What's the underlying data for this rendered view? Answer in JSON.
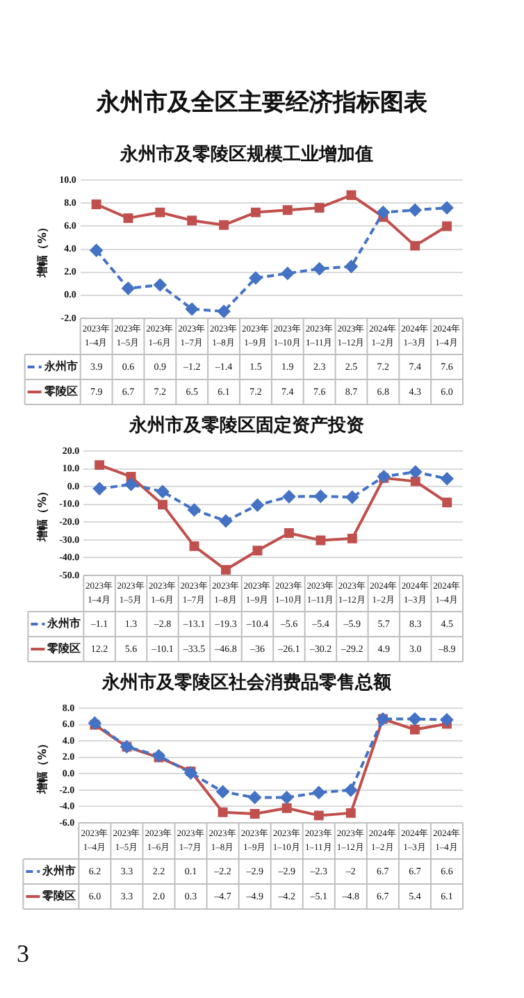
{
  "chart_data": [
    {
      "type": "other",
      "title": "永州市及全区主要经济指标图表",
      "annotations": [
        "3"
      ]
    },
    {
      "type": "line",
      "title": "永州市及零陵区规模工业增加值",
      "ylabel": "增幅（%）",
      "categories": [
        "2023年\n1–4月",
        "2023年\n1–5月",
        "2023年\n1–6月",
        "2023年\n1–7月",
        "2023年\n1–8月",
        "2023年\n1–9月",
        "2023年\n1–10月",
        "2023年\n1–11月",
        "2023年\n1–12月",
        "2024年\n1–2月",
        "2024年\n1–3月",
        "2024年\n1–4月"
      ],
      "series": [
        {
          "name": "永州市",
          "color": "#4472c4",
          "marker": "diamond",
          "line_style": "dashed",
          "values": [
            3.9,
            0.6,
            0.9,
            -1.2,
            -1.4,
            1.5,
            1.9,
            2.3,
            2.5,
            7.2,
            7.4,
            7.6
          ],
          "value_labels": [
            "3.9",
            "0.6",
            "0.9",
            "–1.2",
            "–1.4",
            "1.5",
            "1.9",
            "2.3",
            "2.5",
            "7.2",
            "7.4",
            "7.6"
          ]
        },
        {
          "name": "零陵区",
          "color": "#c0504d",
          "marker": "square",
          "line_style": "solid",
          "values": [
            7.9,
            6.7,
            7.2,
            6.5,
            6.1,
            7.2,
            7.4,
            7.6,
            8.7,
            6.8,
            4.3,
            6.0
          ],
          "value_labels": [
            "7.9",
            "6.7",
            "7.2",
            "6.5",
            "6.1",
            "7.2",
            "7.4",
            "7.6",
            "8.7",
            "6.8",
            "4.3",
            "6.0"
          ]
        }
      ],
      "ylim": [
        -2,
        10
      ],
      "yticks": [
        {
          "value": -2,
          "label": "-2.0"
        },
        {
          "value": 0,
          "label": "0.0"
        },
        {
          "value": 2,
          "label": "2.0"
        },
        {
          "value": 4,
          "label": "4.0"
        },
        {
          "value": 6,
          "label": "6.0"
        },
        {
          "value": 8,
          "label": "8.0"
        },
        {
          "value": 10,
          "label": "10.0"
        }
      ],
      "grid": "y",
      "legend": "bottom"
    },
    {
      "type": "line",
      "title": "永州市及零陵区固定资产投资",
      "ylabel": "增幅（%）",
      "categories": [
        "2023年\n1–4月",
        "2023年\n1–5月",
        "2023年\n1–6月",
        "2023年\n1–7月",
        "2023年\n1–8月",
        "2023年\n1–9月",
        "2023年\n1–10月",
        "2023年\n1–11月",
        "2023年\n1–12月",
        "2024年\n1–2月",
        "2024年\n1–3月",
        "2024年\n1–4月"
      ],
      "series": [
        {
          "name": "永州市",
          "color": "#4472c4",
          "marker": "diamond",
          "line_style": "dashed",
          "values": [
            -1.1,
            1.3,
            -2.8,
            -13.1,
            -19.3,
            -10.4,
            -5.6,
            -5.4,
            -5.9,
            5.7,
            8.3,
            4.5
          ],
          "value_labels": [
            "–1.1",
            "1.3",
            "–2.8",
            "–13.1",
            "–19.3",
            "–10.4",
            "–5.6",
            "–5.4",
            "–5.9",
            "5.7",
            "8.3",
            "4.5"
          ]
        },
        {
          "name": "零陵区",
          "color": "#c0504d",
          "marker": "square",
          "line_style": "solid",
          "values": [
            12.2,
            5.6,
            -10.1,
            -33.5,
            -46.8,
            -36,
            -26.1,
            -30.2,
            -29.2,
            4.9,
            3.0,
            -8.9
          ],
          "value_labels": [
            "12.2",
            "5.6",
            "–10.1",
            "–33.5",
            "–46.8",
            "–36",
            "–26.1",
            "–30.2",
            "–29.2",
            "4.9",
            "3.0",
            "–8.9"
          ]
        }
      ],
      "ylim": [
        -50,
        20
      ],
      "yticks": [
        {
          "value": -50,
          "label": "-50.0"
        },
        {
          "value": -40,
          "label": "-40.0"
        },
        {
          "value": -30,
          "label": "-30.0"
        },
        {
          "value": -20,
          "label": "-20.0"
        },
        {
          "value": -10,
          "label": "-10.0"
        },
        {
          "value": 0,
          "label": "0.0"
        },
        {
          "value": 10,
          "label": "10.0"
        },
        {
          "value": 20,
          "label": "20.0"
        }
      ],
      "grid": "y",
      "legend": "bottom"
    },
    {
      "type": "line",
      "title": "永州市及零陵区社会消费品零售总额",
      "ylabel": "增幅（%）",
      "categories": [
        "2023年\n1–4月",
        "2023年\n1–5月",
        "2023年\n1–6月",
        "2023年\n1–7月",
        "2023年\n1–8月",
        "2023年\n1–9月",
        "2023年\n1–10月",
        "2023年\n1–11月",
        "2023年\n1–12月",
        "2024年\n1–2月",
        "2024年\n1–3月",
        "2024年\n1–4月"
      ],
      "series": [
        {
          "name": "永州市",
          "color": "#4472c4",
          "marker": "diamond",
          "line_style": "dashed",
          "values": [
            6.2,
            3.3,
            2.2,
            0.1,
            -2.2,
            -2.9,
            -2.9,
            -2.3,
            -2,
            6.7,
            6.7,
            6.6
          ],
          "value_labels": [
            "6.2",
            "3.3",
            "2.2",
            "0.1",
            "–2.2",
            "–2.9",
            "–2.9",
            "–2.3",
            "–2",
            "6.7",
            "6.7",
            "6.6"
          ]
        },
        {
          "name": "零陵区",
          "color": "#c0504d",
          "marker": "square",
          "line_style": "solid",
          "values": [
            6.0,
            3.3,
            2.0,
            0.3,
            -4.7,
            -4.9,
            -4.2,
            -5.1,
            -4.8,
            6.7,
            5.4,
            6.1
          ],
          "value_labels": [
            "6.0",
            "3.3",
            "2.0",
            "0.3",
            "–4.7",
            "–4.9",
            "–4.2",
            "–5.1",
            "–4.8",
            "6.7",
            "5.4",
            "6.1"
          ]
        }
      ],
      "ylim": [
        -6,
        8
      ],
      "yticks": [
        {
          "value": -6,
          "label": "-6.0"
        },
        {
          "value": -4,
          "label": "-4.0"
        },
        {
          "value": -2,
          "label": "-2.0"
        },
        {
          "value": 0,
          "label": "0.0"
        },
        {
          "value": 2,
          "label": "2.0"
        },
        {
          "value": 4,
          "label": "4.0"
        },
        {
          "value": 6,
          "label": "6.0"
        },
        {
          "value": 8,
          "label": "8.0"
        }
      ],
      "grid": "y",
      "legend": "bottom"
    }
  ]
}
